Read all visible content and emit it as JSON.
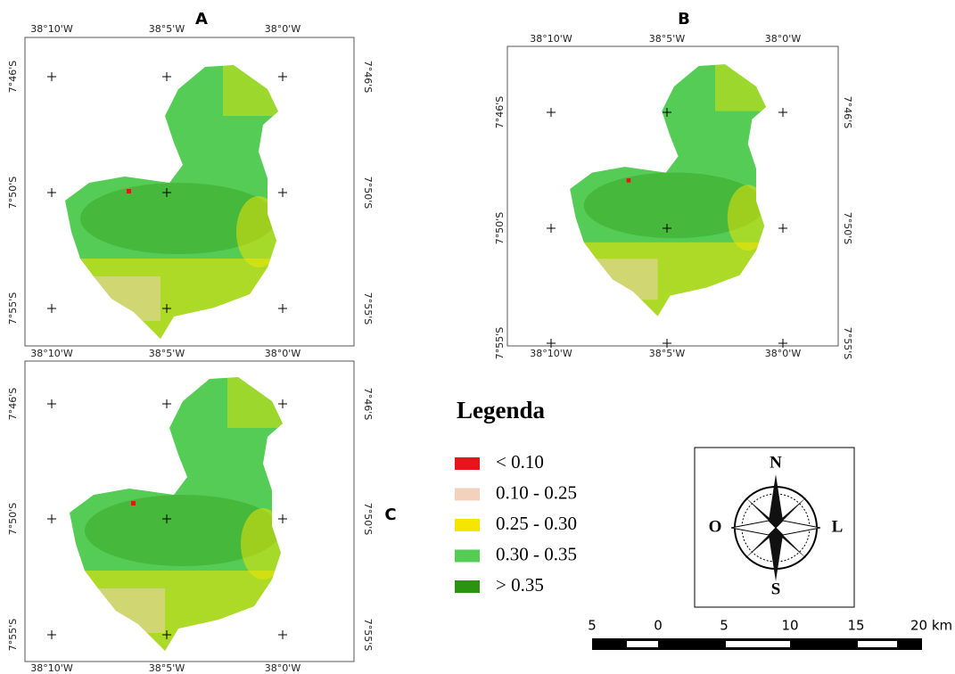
{
  "panels": [
    {
      "label": "A",
      "top_labels": [
        "38°10'W",
        "38°5'W",
        "38°0'W"
      ],
      "bottom_labels": [
        "38°10'W",
        "38°5'W",
        "38°0'W"
      ],
      "left_labels": [
        "7°46'S",
        "7°50'S",
        "7°55'S"
      ],
      "right_labels": [
        "7°46'S",
        "7°50'S",
        "7°55'S"
      ]
    },
    {
      "label": "B",
      "top_labels": [
        "38°10'W",
        "38°5'W",
        "38°0'W"
      ],
      "bottom_labels": [
        "38°10'W",
        "38°5'W",
        "38°0'W"
      ],
      "left_labels": [
        "7°46'S",
        "7°50'S",
        "7°55'S"
      ],
      "right_labels": [
        "7°46'S",
        "7°50'S",
        "7°55'S"
      ]
    },
    {
      "label": "C",
      "bottom_labels": [
        "38°10'W",
        "38°5'W",
        "38°0'W"
      ],
      "left_labels": [
        "7°46'S",
        "7°50'S",
        "7°55'S"
      ],
      "right_labels": [
        "7°46'S",
        "7°50'S",
        "7°55'S"
      ]
    }
  ],
  "legend": {
    "title": "Legenda",
    "items": [
      {
        "label": "< 0.10",
        "color": "#e8141b"
      },
      {
        "label": "0.10 - 0.25",
        "color": "#f3d2bd"
      },
      {
        "label": "0.25 - 0.30",
        "color": "#f5e500"
      },
      {
        "label": "0.30 - 0.35",
        "color": "#55cc55"
      },
      {
        "label": "> 0.35",
        "color": "#2a9410"
      }
    ]
  },
  "compass": {
    "north": "N",
    "west": "O",
    "east": "L",
    "south": "S"
  },
  "scale_bar": {
    "labels": [
      "5",
      "0",
      "5",
      "10",
      "15",
      "20 km"
    ]
  }
}
